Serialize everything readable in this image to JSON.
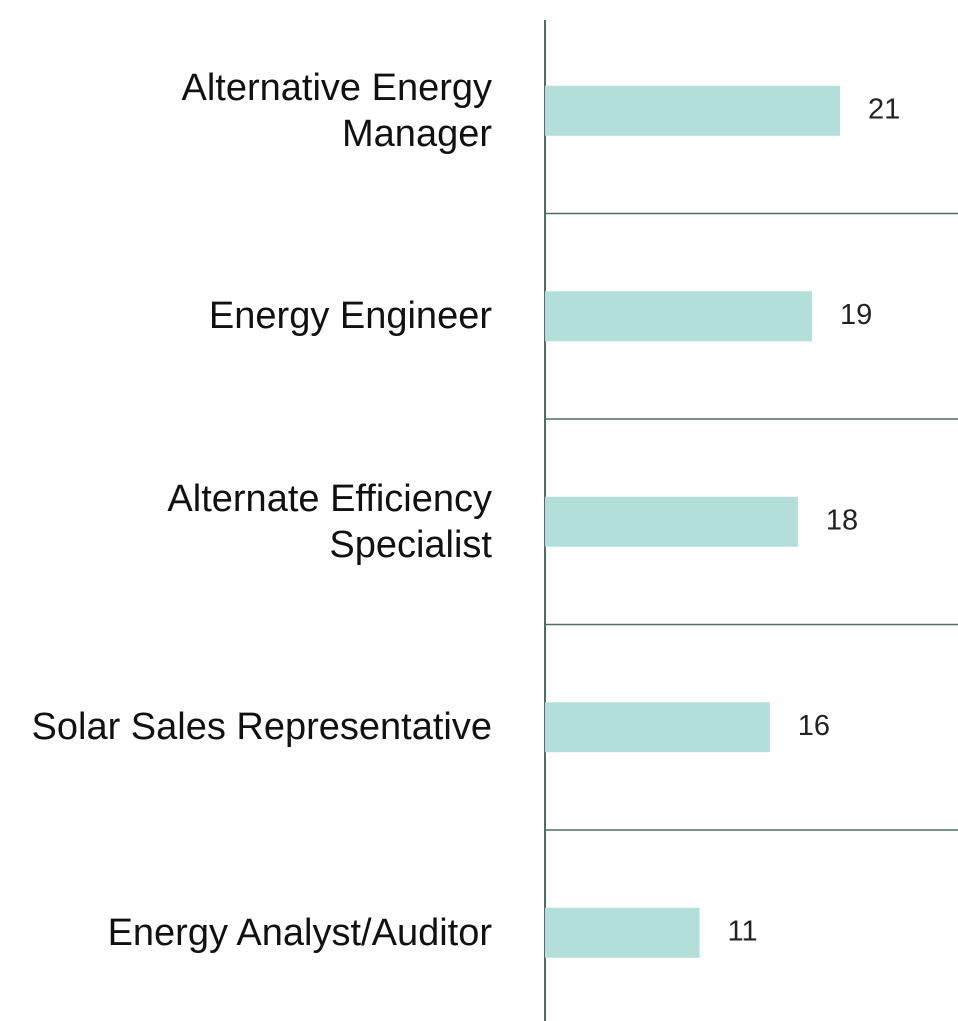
{
  "chart_data": {
    "type": "barh",
    "categories": [
      "Alternative Energy Manager",
      "Energy Engineer",
      "Alternate Efficiency Specialist",
      "Solar Sales Representative",
      "Energy Analyst/Auditor"
    ],
    "values": [
      21,
      19,
      18,
      16,
      11
    ],
    "color": "#b3dfdb"
  }
}
